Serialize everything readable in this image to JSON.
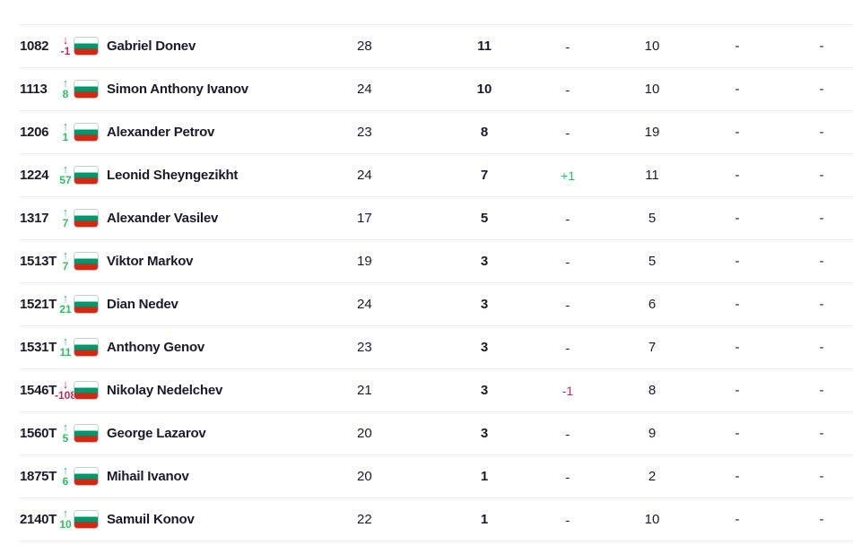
{
  "colors": {
    "up": "#22c55e",
    "down": "#be2a5a",
    "text": "#1a1a2e",
    "divider": "#ececf0"
  },
  "rows": [
    {
      "rank": "1082",
      "dir": "down",
      "arrow": "↓",
      "move": "-1",
      "name": "Gabriel Donev",
      "age": "28",
      "points": "11",
      "change": "-",
      "col4": "10",
      "col5": "-",
      "col6": "-"
    },
    {
      "rank": "1113",
      "dir": "up",
      "arrow": "↑",
      "move": "8",
      "name": "Simon Anthony Ivanov",
      "age": "24",
      "points": "10",
      "change": "-",
      "col4": "10",
      "col5": "-",
      "col6": "-"
    },
    {
      "rank": "1206",
      "dir": "up",
      "arrow": "↑",
      "move": "1",
      "name": "Alexander Petrov",
      "age": "23",
      "points": "8",
      "change": "-",
      "col4": "19",
      "col5": "-",
      "col6": "-"
    },
    {
      "rank": "1224",
      "dir": "up",
      "arrow": "↑",
      "move": "57",
      "name": "Leonid Sheyngezikht",
      "age": "24",
      "points": "7",
      "change": "+1",
      "changeType": "pos",
      "col4": "11",
      "col5": "-",
      "col6": "-"
    },
    {
      "rank": "1317",
      "dir": "up",
      "arrow": "↑",
      "move": "7",
      "name": "Alexander Vasilev",
      "age": "17",
      "points": "5",
      "change": "-",
      "col4": "5",
      "col5": "-",
      "col6": "-"
    },
    {
      "rank": "1513T",
      "dir": "up",
      "arrow": "↑",
      "move": "7",
      "name": "Viktor Markov",
      "age": "19",
      "points": "3",
      "change": "-",
      "col4": "5",
      "col5": "-",
      "col6": "-"
    },
    {
      "rank": "1521T",
      "dir": "up",
      "arrow": "↑",
      "move": "21",
      "name": "Dian Nedev",
      "age": "24",
      "points": "3",
      "change": "-",
      "col4": "6",
      "col5": "-",
      "col6": "-"
    },
    {
      "rank": "1531T",
      "dir": "up",
      "arrow": "↑",
      "move": "11",
      "name": "Anthony Genov",
      "age": "23",
      "points": "3",
      "change": "-",
      "col4": "7",
      "col5": "-",
      "col6": "-"
    },
    {
      "rank": "1546T",
      "dir": "down",
      "arrow": "↓",
      "move": "-108",
      "name": "Nikolay Nedelchev",
      "age": "21",
      "points": "3",
      "change": "-1",
      "changeType": "neg",
      "col4": "8",
      "col5": "-",
      "col6": "-"
    },
    {
      "rank": "1560T",
      "dir": "up",
      "arrow": "↑",
      "move": "5",
      "name": "George Lazarov",
      "age": "20",
      "points": "3",
      "change": "-",
      "col4": "9",
      "col5": "-",
      "col6": "-"
    },
    {
      "rank": "1875T",
      "dir": "up",
      "arrow": "↑",
      "move": "6",
      "name": "Mihail Ivanov",
      "age": "20",
      "points": "1",
      "change": "-",
      "col4": "2",
      "col5": "-",
      "col6": "-"
    },
    {
      "rank": "2140T",
      "dir": "up",
      "arrow": "↑",
      "move": "10",
      "name": "Samuil Konov",
      "age": "22",
      "points": "1",
      "change": "-",
      "col4": "10",
      "col5": "-",
      "col6": "-"
    }
  ]
}
